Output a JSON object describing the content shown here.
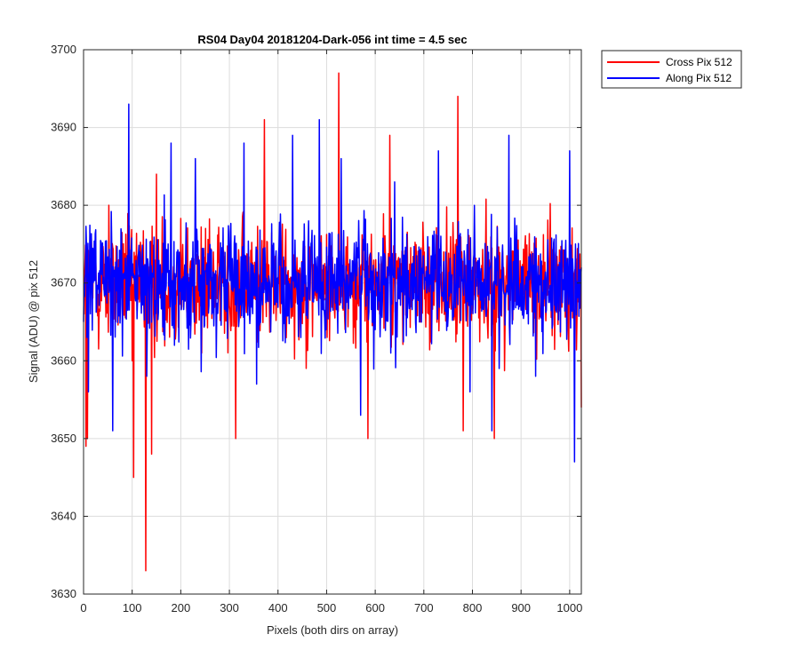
{
  "chart_data": {
    "type": "line",
    "title": "RS04 Day04 20181204-Dark-056 int time = 4.5 sec",
    "xlabel": "Pixels (both dirs on array)",
    "ylabel": "Signal (ADU) @ pix 512",
    "xlim": [
      0,
      1024
    ],
    "ylim": [
      3630,
      3700
    ],
    "xticks": [
      0,
      100,
      200,
      300,
      400,
      500,
      600,
      700,
      800,
      900,
      1000
    ],
    "yticks": [
      3630,
      3640,
      3650,
      3660,
      3670,
      3680,
      3690,
      3700
    ],
    "grid": true,
    "legend_position": "outside-top-right",
    "series": [
      {
        "name": "Cross Pix 512",
        "color": "#ff0000",
        "mean": 3670,
        "x": [
          0,
          5,
          8,
          52,
          100,
          103,
          128,
          140,
          150,
          243,
          313,
          372,
          525,
          585,
          630,
          725,
          770,
          781,
          845,
          1024
        ],
        "values": [
          3666,
          3649,
          3650,
          3680,
          3660,
          3645,
          3633,
          3648,
          3684,
          3661,
          3650,
          3691,
          3697,
          3650,
          3689,
          3673,
          3694,
          3651,
          3650,
          3654
        ]
      },
      {
        "name": "Along Pix 512",
        "color": "#0000ff",
        "mean": 3670,
        "x": [
          0,
          10,
          60,
          93,
          130,
          180,
          230,
          330,
          356,
          430,
          485,
          530,
          570,
          640,
          730,
          795,
          840,
          875,
          930,
          1000,
          1010,
          1024
        ],
        "values": [
          3665,
          3656,
          3651,
          3693,
          3658,
          3688,
          3686,
          3688,
          3657,
          3689,
          3691,
          3686,
          3653,
          3683,
          3687,
          3656,
          3651,
          3689,
          3658,
          3687,
          3647,
          3672
        ]
      }
    ]
  }
}
